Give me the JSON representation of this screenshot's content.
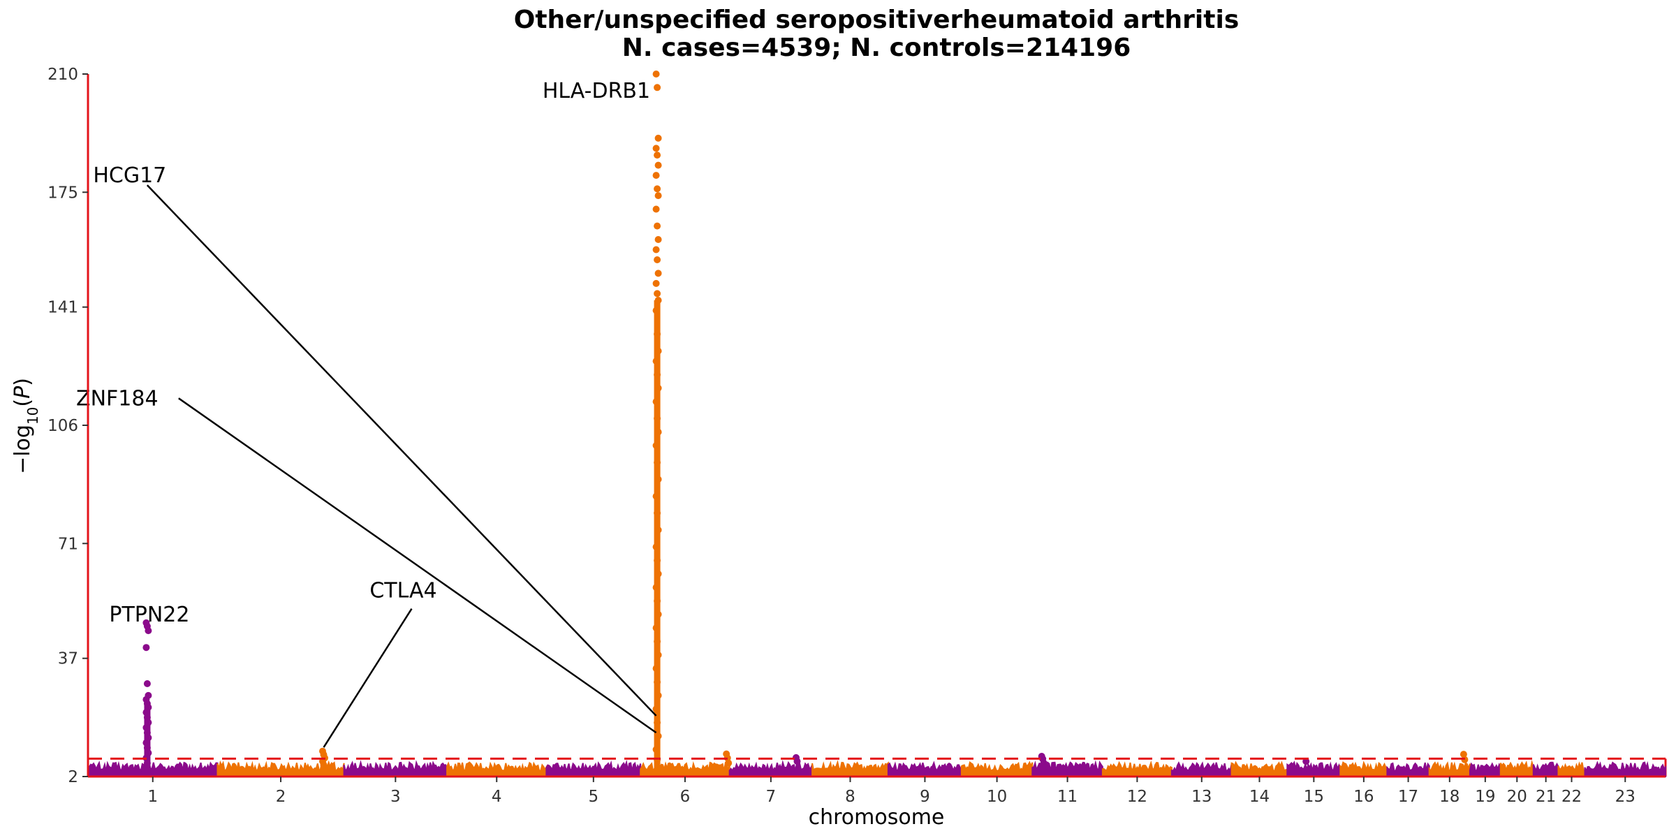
{
  "chart_data": {
    "type": "scatter",
    "subtype": "manhattan",
    "title": "Other/unspecified seropositiverheumatoid arthritis",
    "subtitle": "N. cases=4539; N. controls=214196",
    "xlabel": "chromosome",
    "ylabel": "−log10(P)",
    "ylim": [
      2,
      210
    ],
    "yticks": [
      "2",
      "37",
      "71",
      "106",
      "141",
      "175",
      "210"
    ],
    "significance_threshold": 7.3,
    "colors": {
      "odd": "#8B0A8B",
      "even": "#EE7203",
      "threshold": "#E4141B",
      "axis": "#E4141B"
    },
    "chromosomes": [
      {
        "label": "1",
        "length": 249,
        "color": "#8B0A8B"
      },
      {
        "label": "2",
        "length": 243,
        "color": "#EE7203"
      },
      {
        "label": "3",
        "length": 198,
        "color": "#8B0A8B"
      },
      {
        "label": "4",
        "length": 191,
        "color": "#EE7203"
      },
      {
        "label": "5",
        "length": 181,
        "color": "#8B0A8B"
      },
      {
        "label": "6",
        "length": 171,
        "color": "#EE7203"
      },
      {
        "label": "7",
        "length": 159,
        "color": "#8B0A8B"
      },
      {
        "label": "8",
        "length": 146,
        "color": "#EE7203"
      },
      {
        "label": "9",
        "length": 141,
        "color": "#8B0A8B"
      },
      {
        "label": "10",
        "length": 136,
        "color": "#EE7203"
      },
      {
        "label": "11",
        "length": 135,
        "color": "#8B0A8B"
      },
      {
        "label": "12",
        "length": 133,
        "color": "#EE7203"
      },
      {
        "label": "13",
        "length": 115,
        "color": "#8B0A8B"
      },
      {
        "label": "14",
        "length": 107,
        "color": "#EE7203"
      },
      {
        "label": "15",
        "length": 102,
        "color": "#8B0A8B"
      },
      {
        "label": "16",
        "length": 90,
        "color": "#EE7203"
      },
      {
        "label": "17",
        "length": 81,
        "color": "#8B0A8B"
      },
      {
        "label": "18",
        "length": 78,
        "color": "#EE7203"
      },
      {
        "label": "19",
        "length": 59,
        "color": "#8B0A8B"
      },
      {
        "label": "20",
        "length": 63,
        "color": "#EE7203"
      },
      {
        "label": "21",
        "length": 48,
        "color": "#8B0A8B"
      },
      {
        "label": "22",
        "length": 51,
        "color": "#EE7203"
      },
      {
        "label": "23",
        "length": 155,
        "color": "#8B0A8B"
      }
    ],
    "peaks": [
      {
        "chrom": "1",
        "pos": 114,
        "values": [
          47.5,
          46.5,
          45.2,
          40.2,
          29.5,
          26.0,
          24.8,
          23.6,
          22.5,
          21.0,
          19.5,
          18.0,
          16.5,
          15.0,
          13.5,
          12.0,
          10.5,
          9.0,
          7.5,
          6.0
        ]
      },
      {
        "chrom": "2",
        "pos": 204,
        "values": [
          9.5,
          8.5,
          7.5,
          6.5,
          5.5
        ]
      },
      {
        "chrom": "6",
        "pos": 32,
        "values": [
          210,
          206,
          191,
          188,
          186,
          183,
          180,
          176,
          174,
          170,
          165,
          161,
          158,
          155,
          151,
          148,
          145,
          143,
          140,
          133,
          128,
          125,
          121,
          117,
          113,
          108,
          104,
          100,
          95,
          90,
          85,
          80,
          75,
          70,
          66,
          62,
          58,
          54,
          50,
          46,
          42,
          38,
          34,
          30,
          26,
          22,
          18,
          14,
          10,
          7
        ]
      },
      {
        "chrom": "6",
        "pos": 167,
        "values": [
          8.7,
          7.5,
          6.0
        ]
      },
      {
        "chrom": "7",
        "pos": 130,
        "values": [
          7.6,
          6.5
        ]
      },
      {
        "chrom": "11",
        "pos": 20,
        "values": [
          8.0,
          7.2,
          6.0
        ]
      },
      {
        "chrom": "18",
        "pos": 68,
        "values": [
          8.6,
          7.0
        ]
      },
      {
        "chrom": "15",
        "pos": 38,
        "values": [
          6.5
        ]
      }
    ],
    "annotations": [
      {
        "label": "PTPN22",
        "chrom": "1",
        "pos": 114,
        "y": 48,
        "text_x_offset": 0,
        "text_y": 50,
        "line": false
      },
      {
        "label": "CTLA4",
        "chrom": "2",
        "pos": 204,
        "y": 9,
        "text_x_offset": 100,
        "text_y": 55,
        "line": true
      },
      {
        "label": "HCG17",
        "chrom": "1",
        "pos": 40,
        "y": 180,
        "target_chrom": "6",
        "target_pos": 30,
        "target_y": 20,
        "line": true
      },
      {
        "label": "ZNF184",
        "chrom": "1",
        "pos": 40,
        "y": 114,
        "target_chrom": "6",
        "target_pos": 30,
        "target_y": 15,
        "line": true
      },
      {
        "label": "HLA-DRB1",
        "chrom": "6",
        "pos": 32,
        "y": 205,
        "line": false
      }
    ]
  }
}
